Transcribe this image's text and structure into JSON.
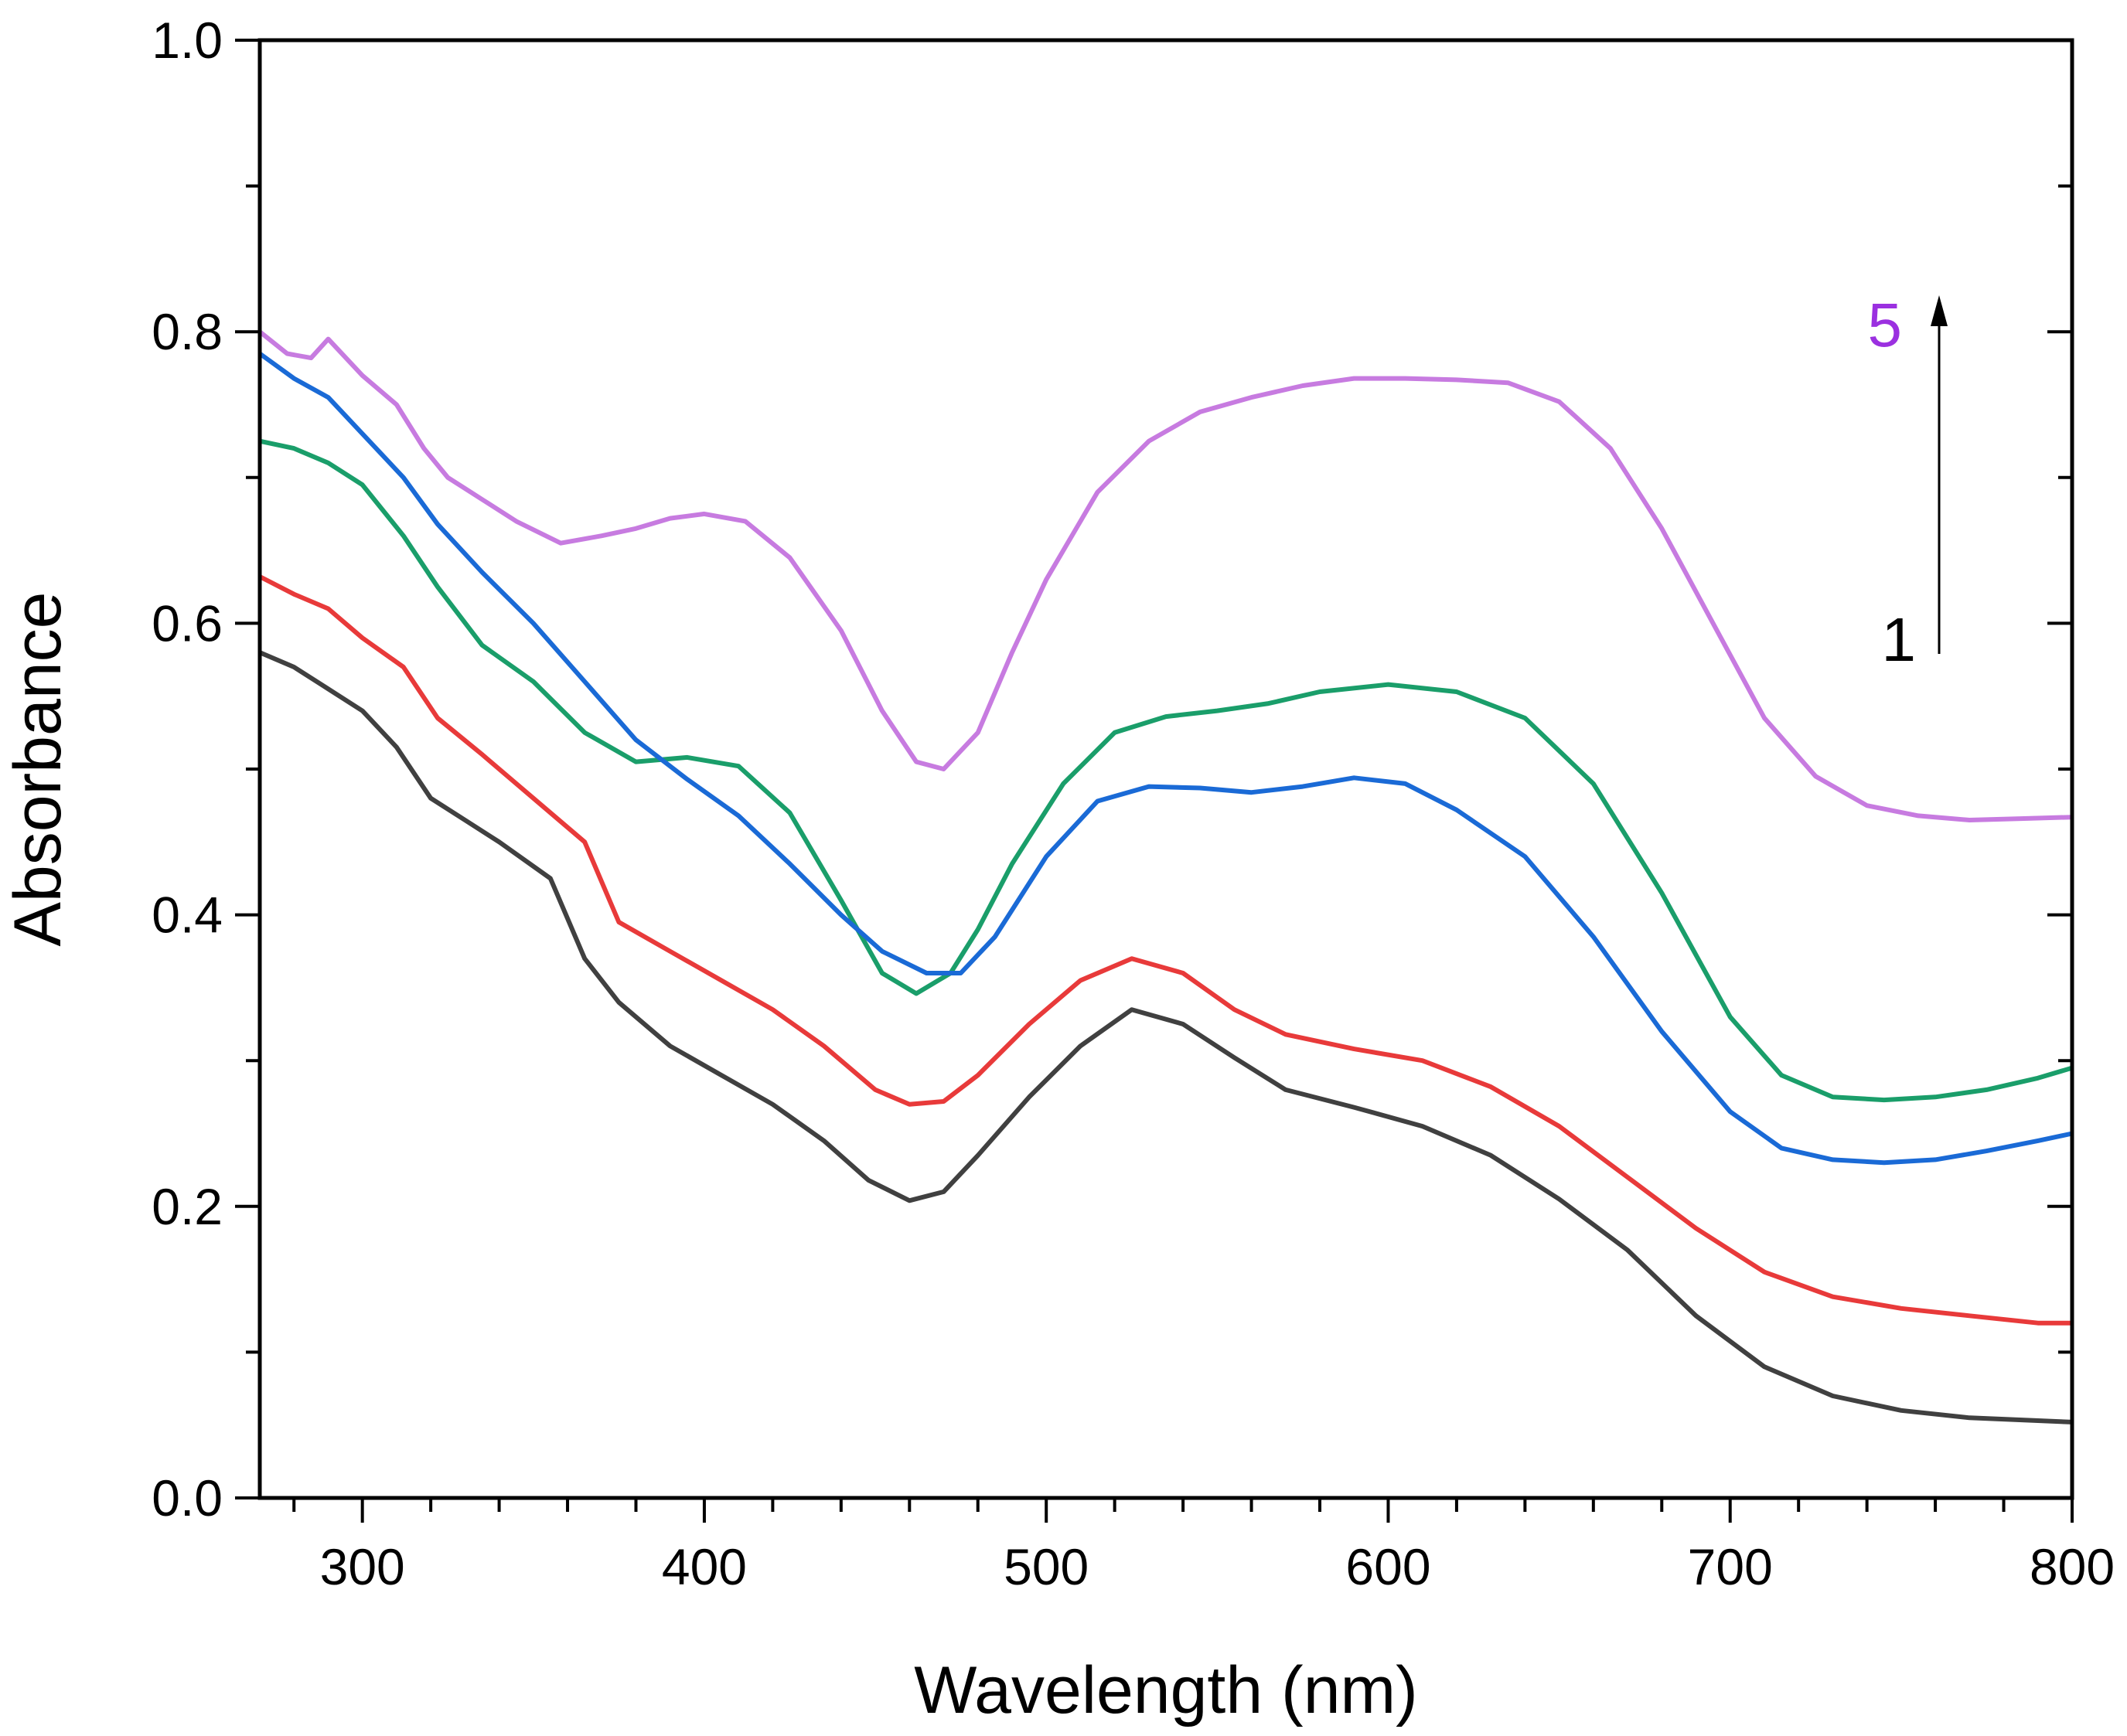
{
  "chart_data": {
    "type": "line",
    "title": "",
    "xlabel": "Wavelength (nm)",
    "ylabel": "Absorbance",
    "xlim": [
      270,
      800
    ],
    "ylim": [
      0.0,
      1.0
    ],
    "x_ticks": [
      300,
      400,
      500,
      600,
      700,
      800
    ],
    "x_tick_labels": [
      "300",
      "400",
      "500",
      "600",
      "700",
      "800"
    ],
    "y_ticks": [
      0.0,
      0.2,
      0.4,
      0.6,
      0.8,
      1.0
    ],
    "y_tick_labels": [
      "0.0",
      "0.2",
      "0.4",
      "0.6",
      "0.8",
      "1.0"
    ],
    "grid": false,
    "legend": "none",
    "annotations": [
      {
        "text": "5",
        "color": "#9b30e0"
      },
      {
        "text": "1",
        "color": "#000000"
      }
    ],
    "series": [
      {
        "color": "#404040",
        "points": [
          [
            270,
            0.58
          ],
          [
            280,
            0.57
          ],
          [
            290,
            0.555
          ],
          [
            300,
            0.54
          ],
          [
            310,
            0.515
          ],
          [
            320,
            0.48
          ],
          [
            330,
            0.465
          ],
          [
            340,
            0.45
          ],
          [
            355,
            0.425
          ],
          [
            365,
            0.37
          ],
          [
            375,
            0.34
          ],
          [
            390,
            0.31
          ],
          [
            405,
            0.29
          ],
          [
            420,
            0.27
          ],
          [
            435,
            0.245
          ],
          [
            448,
            0.218
          ],
          [
            460,
            0.204
          ],
          [
            470,
            0.21
          ],
          [
            480,
            0.235
          ],
          [
            495,
            0.275
          ],
          [
            510,
            0.31
          ],
          [
            525,
            0.335
          ],
          [
            540,
            0.325
          ],
          [
            555,
            0.302
          ],
          [
            570,
            0.28
          ],
          [
            590,
            0.268
          ],
          [
            610,
            0.255
          ],
          [
            630,
            0.235
          ],
          [
            650,
            0.205
          ],
          [
            670,
            0.17
          ],
          [
            690,
            0.125
          ],
          [
            710,
            0.09
          ],
          [
            730,
            0.07
          ],
          [
            750,
            0.06
          ],
          [
            770,
            0.055
          ],
          [
            790,
            0.053
          ],
          [
            800,
            0.052
          ]
        ]
      },
      {
        "color": "#e83a3a",
        "points": [
          [
            270,
            0.632
          ],
          [
            280,
            0.62
          ],
          [
            290,
            0.61
          ],
          [
            300,
            0.59
          ],
          [
            312,
            0.57
          ],
          [
            322,
            0.535
          ],
          [
            335,
            0.51
          ],
          [
            350,
            0.48
          ],
          [
            365,
            0.45
          ],
          [
            375,
            0.395
          ],
          [
            390,
            0.375
          ],
          [
            405,
            0.355
          ],
          [
            420,
            0.335
          ],
          [
            435,
            0.31
          ],
          [
            450,
            0.28
          ],
          [
            460,
            0.27
          ],
          [
            470,
            0.272
          ],
          [
            480,
            0.29
          ],
          [
            495,
            0.325
          ],
          [
            510,
            0.355
          ],
          [
            525,
            0.37
          ],
          [
            540,
            0.36
          ],
          [
            555,
            0.335
          ],
          [
            570,
            0.318
          ],
          [
            590,
            0.308
          ],
          [
            610,
            0.3
          ],
          [
            630,
            0.282
          ],
          [
            650,
            0.255
          ],
          [
            670,
            0.22
          ],
          [
            690,
            0.185
          ],
          [
            710,
            0.155
          ],
          [
            730,
            0.138
          ],
          [
            750,
            0.13
          ],
          [
            770,
            0.125
          ],
          [
            790,
            0.12
          ],
          [
            800,
            0.12
          ]
        ]
      },
      {
        "color": "#1a9e6a",
        "points": [
          [
            270,
            0.725
          ],
          [
            280,
            0.72
          ],
          [
            290,
            0.71
          ],
          [
            300,
            0.695
          ],
          [
            312,
            0.66
          ],
          [
            322,
            0.625
          ],
          [
            335,
            0.585
          ],
          [
            350,
            0.56
          ],
          [
            365,
            0.525
          ],
          [
            380,
            0.505
          ],
          [
            395,
            0.508
          ],
          [
            410,
            0.502
          ],
          [
            425,
            0.47
          ],
          [
            440,
            0.41
          ],
          [
            452,
            0.36
          ],
          [
            462,
            0.346
          ],
          [
            472,
            0.36
          ],
          [
            480,
            0.39
          ],
          [
            490,
            0.435
          ],
          [
            505,
            0.49
          ],
          [
            520,
            0.525
          ],
          [
            535,
            0.536
          ],
          [
            550,
            0.54
          ],
          [
            565,
            0.545
          ],
          [
            580,
            0.553
          ],
          [
            600,
            0.558
          ],
          [
            620,
            0.553
          ],
          [
            640,
            0.535
          ],
          [
            660,
            0.49
          ],
          [
            680,
            0.415
          ],
          [
            700,
            0.33
          ],
          [
            715,
            0.29
          ],
          [
            730,
            0.275
          ],
          [
            745,
            0.273
          ],
          [
            760,
            0.275
          ],
          [
            775,
            0.28
          ],
          [
            790,
            0.288
          ],
          [
            800,
            0.295
          ]
        ]
      },
      {
        "color": "#1a6ad6",
        "points": [
          [
            270,
            0.785
          ],
          [
            280,
            0.768
          ],
          [
            290,
            0.755
          ],
          [
            300,
            0.73
          ],
          [
            312,
            0.7
          ],
          [
            322,
            0.668
          ],
          [
            335,
            0.635
          ],
          [
            350,
            0.6
          ],
          [
            365,
            0.56
          ],
          [
            380,
            0.52
          ],
          [
            395,
            0.493
          ],
          [
            410,
            0.468
          ],
          [
            425,
            0.435
          ],
          [
            440,
            0.4
          ],
          [
            452,
            0.375
          ],
          [
            465,
            0.36
          ],
          [
            475,
            0.36
          ],
          [
            485,
            0.385
          ],
          [
            500,
            0.44
          ],
          [
            515,
            0.478
          ],
          [
            530,
            0.488
          ],
          [
            545,
            0.487
          ],
          [
            560,
            0.484
          ],
          [
            575,
            0.488
          ],
          [
            590,
            0.494
          ],
          [
            605,
            0.49
          ],
          [
            620,
            0.472
          ],
          [
            640,
            0.44
          ],
          [
            660,
            0.385
          ],
          [
            680,
            0.32
          ],
          [
            700,
            0.265
          ],
          [
            715,
            0.24
          ],
          [
            730,
            0.232
          ],
          [
            745,
            0.23
          ],
          [
            760,
            0.232
          ],
          [
            775,
            0.238
          ],
          [
            790,
            0.245
          ],
          [
            800,
            0.25
          ]
        ]
      },
      {
        "color": "#c77be0",
        "points": [
          [
            270,
            0.8
          ],
          [
            278,
            0.785
          ],
          [
            285,
            0.782
          ],
          [
            290,
            0.795
          ],
          [
            300,
            0.77
          ],
          [
            310,
            0.75
          ],
          [
            318,
            0.72
          ],
          [
            325,
            0.7
          ],
          [
            335,
            0.685
          ],
          [
            345,
            0.67
          ],
          [
            358,
            0.655
          ],
          [
            370,
            0.66
          ],
          [
            380,
            0.665
          ],
          [
            390,
            0.672
          ],
          [
            400,
            0.675
          ],
          [
            412,
            0.67
          ],
          [
            425,
            0.645
          ],
          [
            440,
            0.595
          ],
          [
            452,
            0.54
          ],
          [
            462,
            0.505
          ],
          [
            470,
            0.5
          ],
          [
            480,
            0.525
          ],
          [
            490,
            0.58
          ],
          [
            500,
            0.63
          ],
          [
            515,
            0.69
          ],
          [
            530,
            0.725
          ],
          [
            545,
            0.745
          ],
          [
            560,
            0.755
          ],
          [
            575,
            0.763
          ],
          [
            590,
            0.768
          ],
          [
            605,
            0.768
          ],
          [
            620,
            0.767
          ],
          [
            635,
            0.765
          ],
          [
            650,
            0.752
          ],
          [
            665,
            0.72
          ],
          [
            680,
            0.665
          ],
          [
            695,
            0.6
          ],
          [
            710,
            0.535
          ],
          [
            725,
            0.495
          ],
          [
            740,
            0.475
          ],
          [
            755,
            0.468
          ],
          [
            770,
            0.465
          ],
          [
            785,
            0.466
          ],
          [
            800,
            0.467
          ]
        ]
      }
    ]
  }
}
